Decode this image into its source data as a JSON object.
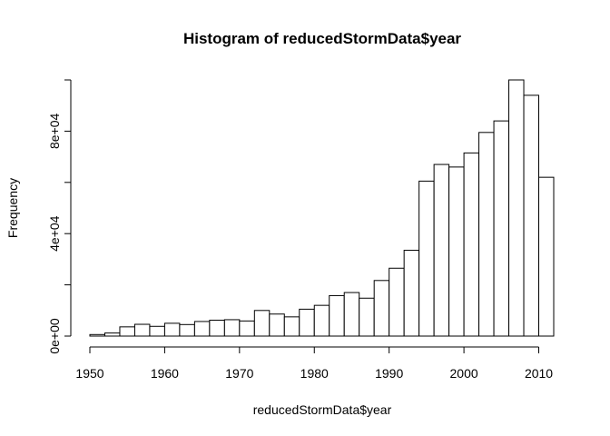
{
  "chart_data": {
    "type": "bar",
    "title": "Histogram of reducedStormData$year",
    "xlabel": "reducedStormData$year",
    "ylabel": "Frequency",
    "bin_width": 2,
    "bins": [
      [
        1950,
        1952
      ],
      [
        1952,
        1954
      ],
      [
        1954,
        1956
      ],
      [
        1956,
        1958
      ],
      [
        1958,
        1960
      ],
      [
        1960,
        1962
      ],
      [
        1962,
        1964
      ],
      [
        1964,
        1966
      ],
      [
        1966,
        1968
      ],
      [
        1968,
        1970
      ],
      [
        1970,
        1972
      ],
      [
        1972,
        1974
      ],
      [
        1974,
        1976
      ],
      [
        1976,
        1978
      ],
      [
        1978,
        1980
      ],
      [
        1980,
        1982
      ],
      [
        1982,
        1984
      ],
      [
        1984,
        1986
      ],
      [
        1986,
        1988
      ],
      [
        1988,
        1990
      ],
      [
        1990,
        1992
      ],
      [
        1992,
        1994
      ],
      [
        1994,
        1996
      ],
      [
        1996,
        1998
      ],
      [
        1998,
        2000
      ],
      [
        2000,
        2002
      ],
      [
        2002,
        2004
      ],
      [
        2004,
        2006
      ],
      [
        2006,
        2008
      ],
      [
        2008,
        2010
      ],
      [
        2010,
        2012
      ]
    ],
    "values": [
      600,
      1200,
      3600,
      4600,
      3800,
      5000,
      4500,
      5700,
      6200,
      6400,
      5900,
      10000,
      8600,
      7500,
      10500,
      12000,
      15800,
      17000,
      14800,
      21700,
      26500,
      33500,
      60500,
      67000,
      66000,
      71500,
      79500,
      84000,
      100000,
      94000,
      62000
    ],
    "xlim": [
      1950,
      2012
    ],
    "ylim": [
      0,
      100000
    ],
    "xticks": [
      1950,
      1960,
      1970,
      1980,
      1990,
      2000,
      2010
    ],
    "xtick_labels": [
      "1950",
      "1960",
      "1970",
      "1980",
      "1990",
      "2000",
      "2010"
    ],
    "yticks": [
      0,
      40000,
      80000
    ],
    "ytick_labels": [
      "0e+00",
      "4e+04",
      "8e+04"
    ],
    "yticks_minor": [
      20000,
      60000,
      100000
    ],
    "grid": false,
    "legend": "none",
    "bar_fill": "#ffffff",
    "bar_stroke": "#000000"
  }
}
